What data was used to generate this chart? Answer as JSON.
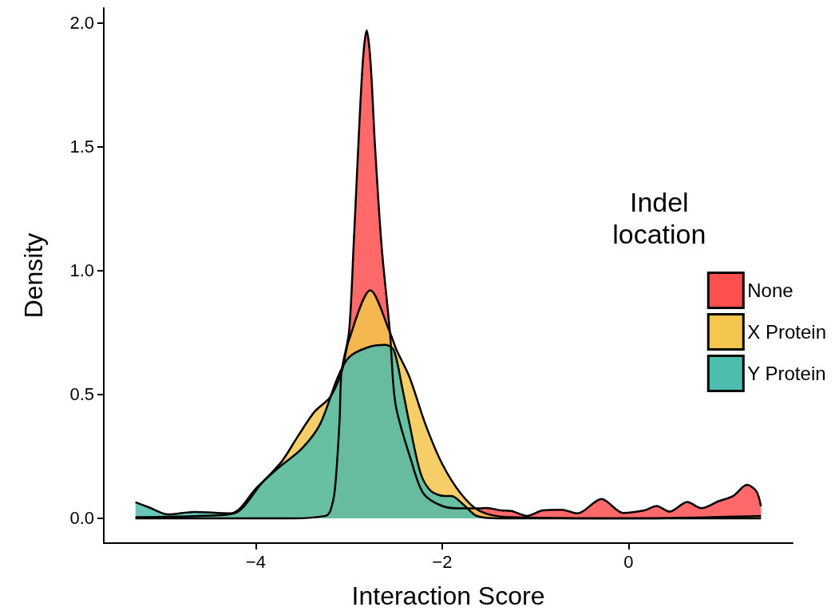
{
  "chart_data": {
    "type": "area",
    "xlabel": "Interaction Score",
    "ylabel": "Density",
    "legend_title": "Indel\nlocation",
    "legend": "right",
    "grid": false,
    "marker": "none",
    "line_style": "solid",
    "xlim": [
      -5.63,
      1.76
    ],
    "xticks": [
      {
        "value": -4,
        "label": "−4"
      },
      {
        "value": -2,
        "label": "−2"
      },
      {
        "value": 0,
        "label": "0"
      }
    ],
    "ylim": [
      -0.1,
      2.06
    ],
    "yticks": [
      {
        "value": 0,
        "label": "0.0"
      },
      {
        "value": 0.5,
        "label": "0.5"
      },
      {
        "value": 1,
        "label": "1.0"
      },
      {
        "value": 1.5,
        "label": "1.5"
      },
      {
        "value": 2,
        "label": "2.0"
      }
    ],
    "series": [
      {
        "name": "None",
        "color": "#ff4f4f",
        "x": [
          -5.29,
          -3.6,
          -3.25,
          -3.2,
          -3.15,
          -3.1,
          -3.08,
          -3.0,
          -2.95,
          -2.9,
          -2.85,
          -2.81,
          -2.77,
          -2.72,
          -2.65,
          -2.56,
          -2.5,
          -2.33,
          -2.2,
          -2.0,
          -1.8,
          -1.6,
          -1.52,
          -1.37,
          -1.26,
          -1.09,
          -0.92,
          -0.72,
          -0.55,
          -0.29,
          -0.06,
          0.17,
          0.3,
          0.44,
          0.63,
          0.78,
          0.97,
          1.12,
          1.27,
          1.37,
          1.42
        ],
        "values": [
          0,
          0,
          0.01,
          0.03,
          0.12,
          0.4,
          0.59,
          0.75,
          1.1,
          1.5,
          1.85,
          1.97,
          1.85,
          1.5,
          1.1,
          0.75,
          0.46,
          0.23,
          0.1,
          0.05,
          0.04,
          0.04,
          0.042,
          0.032,
          0.03,
          0.01,
          0.032,
          0.035,
          0.02,
          0.078,
          0.022,
          0.032,
          0.05,
          0.027,
          0.066,
          0.041,
          0.07,
          0.09,
          0.135,
          0.11,
          0.048
        ]
      },
      {
        "name": "X Protein",
        "color": "#f5c64e",
        "x": [
          -5.29,
          -4.6,
          -4.23,
          -3.94,
          -3.72,
          -3.55,
          -3.37,
          -3.2,
          -3.08,
          -3.0,
          -2.77,
          -2.56,
          -2.49,
          -2.35,
          -2.18,
          -2.0,
          -1.8,
          -1.6,
          -1.3,
          0,
          1.42
        ],
        "values": [
          0.005,
          0.01,
          0.02,
          0.14,
          0.23,
          0.33,
          0.43,
          0.49,
          0.59,
          0.72,
          0.92,
          0.75,
          0.68,
          0.57,
          0.38,
          0.22,
          0.1,
          0.03,
          0.005,
          0,
          0.01
        ]
      },
      {
        "name": "Y Protein",
        "color": "#4dbdad",
        "x": [
          -5.29,
          -5.15,
          -4.94,
          -4.66,
          -4.28,
          -4.17,
          -4.0,
          -3.77,
          -3.51,
          -3.31,
          -3.12,
          -3.0,
          -2.8,
          -2.61,
          -2.52,
          -2.43,
          -2.35,
          -2.23,
          -2.12,
          -1.97,
          -1.9,
          -1.77,
          -1.63,
          -1.4,
          1.42
        ],
        "values": [
          0.065,
          0.045,
          0.016,
          0.026,
          0.02,
          0.04,
          0.12,
          0.2,
          0.28,
          0.38,
          0.57,
          0.65,
          0.69,
          0.7,
          0.68,
          0.53,
          0.38,
          0.18,
          0.11,
          0.09,
          0.09,
          0.055,
          0.01,
          0,
          0
        ]
      }
    ]
  }
}
